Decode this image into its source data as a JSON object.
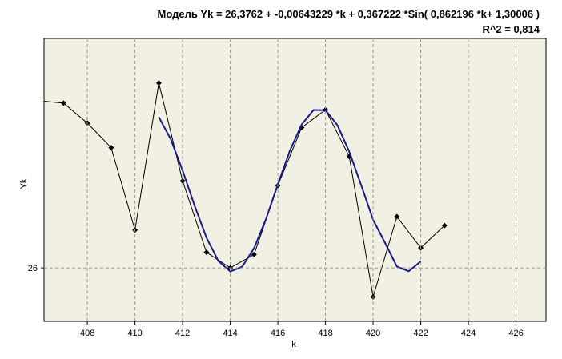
{
  "chart_data": {
    "type": "line",
    "title": "Модель Yk =  26,3762  +  -0,00643229 *k +  0,367222 *Sin( 0,862196 *k+ 1,30006 )",
    "subtitle": "R^2 = 0,814",
    "x_label": "k",
    "y_label": "Yk",
    "xlim": [
      406.18,
      427.26
    ],
    "ylim": [
      25.76,
      27.03
    ],
    "xticks": [
      408,
      410,
      412,
      414,
      416,
      418,
      420,
      422,
      424,
      426
    ],
    "yticks": [
      26
    ],
    "grid": true,
    "series": [
      {
        "color": "#000000",
        "markers": true,
        "x": [
          406,
          407,
          408,
          409,
          410,
          411,
          412,
          413,
          414,
          415,
          416,
          417,
          418,
          419,
          420,
          421,
          422,
          423
        ],
        "values": [
          26.75,
          26.74,
          26.65,
          26.54,
          26.17,
          26.83,
          26.39,
          26.07,
          26.0,
          26.06,
          26.37,
          26.63,
          26.71,
          26.5,
          25.87,
          26.23,
          26.09,
          26.19
        ]
      },
      {
        "color": "#1a1a8c",
        "markers": false,
        "x": [
          411,
          411.5,
          412,
          412.5,
          413,
          413.5,
          414,
          414.5,
          415,
          415.5,
          416,
          416.5,
          417,
          417.5,
          418,
          418.5,
          419,
          419.5,
          420,
          420.5,
          421,
          421.5,
          422
        ],
        "values": [
          26.677,
          26.578,
          26.437,
          26.28,
          26.136,
          26.031,
          25.984,
          26.005,
          26.088,
          26.219,
          26.375,
          26.525,
          26.644,
          26.709,
          26.708,
          26.641,
          26.522,
          26.371,
          26.216,
          26.113,
          26.006,
          25.985,
          26.029
        ]
      }
    ]
  }
}
